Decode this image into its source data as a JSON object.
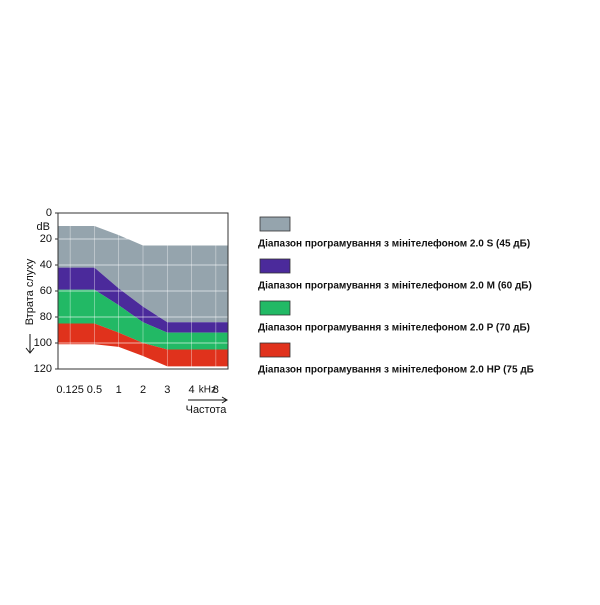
{
  "chart_data": {
    "type": "band",
    "y_label": "Втрата слуху",
    "y_unit": "dB",
    "x_label": "Частота",
    "categories": [
      "0.125",
      "0.5",
      "1",
      "2",
      "3",
      "4",
      "8"
    ],
    "x_unit": "kHz",
    "ylim": [
      0,
      120
    ],
    "yticks": [
      0,
      20,
      40,
      60,
      80,
      100,
      120
    ],
    "y_inverted": true,
    "grid": true,
    "series": [
      {
        "name": "Діапазон програмування з мінітелефоном 2.0 S (45 дБ)",
        "color": "#95a4ad",
        "from": [
          10,
          10,
          17,
          25,
          25,
          25,
          25
        ],
        "to": [
          42,
          42,
          58,
          72,
          84,
          84,
          84
        ]
      },
      {
        "name": "Діапазон програмування з мінітелефоном 2.0 M (60 дБ)",
        "color": "#4b2a9b",
        "from": [
          42,
          42,
          58,
          72,
          84,
          84,
          84
        ],
        "to": [
          59,
          59,
          71,
          84,
          92,
          92,
          92
        ]
      },
      {
        "name": "Діапазон програмування з мінітелефоном 2.0 P (70 дБ)",
        "color": "#22b965",
        "from": [
          59,
          59,
          71,
          84,
          92,
          92,
          92
        ],
        "to": [
          85,
          85,
          92,
          100,
          105,
          105,
          105
        ]
      },
      {
        "name": "Діапазон програмування з мінітелефоном 2.0 HP (75 дБ",
        "color": "#e0321c",
        "from": [
          85,
          85,
          92,
          100,
          105,
          105,
          105
        ],
        "to": [
          101,
          101,
          103,
          110,
          118,
          118,
          118
        ]
      }
    ]
  }
}
